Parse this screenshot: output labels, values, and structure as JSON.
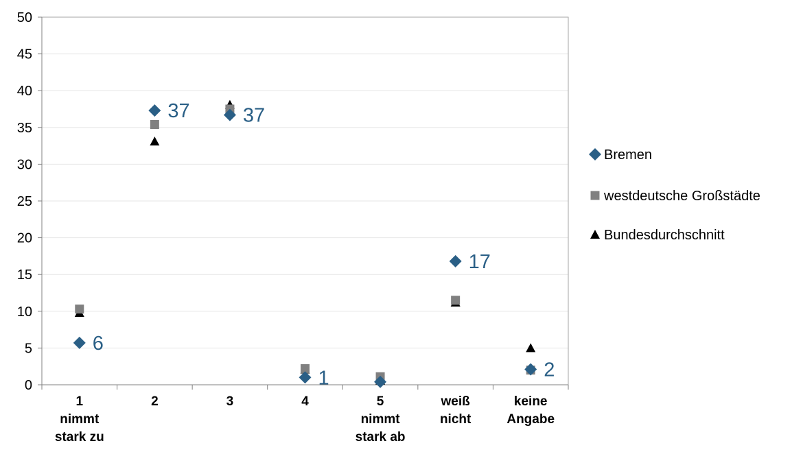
{
  "chart_data": {
    "type": "scatter",
    "categories": [
      [
        "1",
        "nimmt",
        "stark zu"
      ],
      [
        "2"
      ],
      [
        "3"
      ],
      [
        "4"
      ],
      [
        "5",
        "nimmt",
        "stark ab"
      ],
      [
        "weiß",
        "nicht"
      ],
      [
        "keine",
        "Angabe"
      ]
    ],
    "ylim": [
      0,
      50
    ],
    "yticks": [
      0,
      5,
      10,
      15,
      20,
      25,
      30,
      35,
      40,
      45,
      50
    ],
    "grid": true,
    "legend_position": "right",
    "series": [
      {
        "name": "Bremen",
        "marker": "diamond",
        "color": "#2a5f86",
        "values": [
          5.7,
          37.3,
          36.7,
          1.0,
          0.4,
          16.8,
          2.1
        ],
        "data_labels": [
          "6",
          "37",
          "37",
          "1",
          "",
          "17",
          "2"
        ]
      },
      {
        "name": "westdeutsche Großstädte",
        "marker": "square",
        "color": "#808080",
        "values": [
          10.3,
          35.4,
          37.5,
          2.2,
          1.1,
          11.5,
          2.0
        ]
      },
      {
        "name": "Bundesdurchschnitt",
        "marker": "triangle",
        "color": "#000000",
        "values": [
          9.8,
          33.1,
          38.1,
          2.1,
          0.6,
          11.2,
          5.0
        ]
      }
    ]
  }
}
